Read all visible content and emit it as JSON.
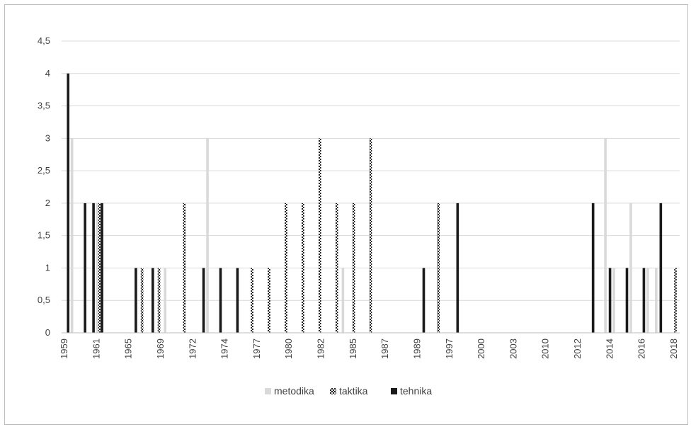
{
  "chart_data": {
    "type": "bar",
    "title": "",
    "xlabel": "",
    "ylabel": "",
    "ylim": [
      0,
      4.5
    ],
    "y_ticks": [
      "0",
      "0,5",
      "1",
      "1,5",
      "2",
      "2,5",
      "3",
      "3,5",
      "4",
      "4,5"
    ],
    "grid": "horizontal",
    "legend_position": "bottom",
    "x_tick_labels": [
      "1959",
      "1961",
      "1965",
      "1969",
      "1972",
      "1974",
      "1977",
      "1980",
      "1982",
      "1985",
      "1987",
      "1989",
      "1997",
      "2000",
      "2003",
      "2010",
      "2012",
      "2014",
      "2016",
      "2018"
    ],
    "series": [
      {
        "name": "metodika",
        "color": "#d9d9d9",
        "pattern": "solid",
        "values": [
          0,
          3,
          0,
          0,
          2,
          0,
          0,
          0,
          0,
          0,
          0,
          0,
          1,
          0,
          0,
          0,
          0,
          3,
          0,
          0,
          0,
          0,
          0,
          0,
          0,
          0,
          0,
          0,
          0,
          0,
          0,
          0,
          0,
          1,
          0,
          0,
          0,
          0,
          0,
          0,
          0,
          0,
          0,
          0,
          0,
          0,
          0,
          0,
          0,
          0,
          0,
          0,
          0,
          0,
          0,
          0,
          0,
          0,
          0,
          0,
          0,
          0,
          0,
          0,
          3,
          1,
          0,
          2,
          0,
          1,
          1,
          0,
          0
        ]
      },
      {
        "name": "taktika",
        "color": "#1f1f1f",
        "pattern": "checker",
        "values": [
          0,
          0,
          0,
          0,
          2,
          0,
          0,
          0,
          0,
          1,
          0,
          1,
          0,
          0,
          2,
          0,
          0,
          0,
          0,
          0,
          0,
          0,
          1,
          0,
          1,
          0,
          2,
          0,
          2,
          0,
          3,
          0,
          2,
          0,
          2,
          0,
          3,
          0,
          0,
          0,
          0,
          0,
          0,
          0,
          2,
          0,
          0,
          0,
          0,
          0,
          0,
          0,
          0,
          0,
          0,
          0,
          0,
          0,
          0,
          0,
          0,
          0,
          0,
          0,
          0,
          0,
          0,
          0,
          0,
          0,
          0,
          0,
          1
        ]
      },
      {
        "name": "tehnika",
        "color": "#1a1a1a",
        "pattern": "solid",
        "values": [
          4,
          0,
          2,
          2,
          2,
          0,
          0,
          0,
          1,
          0,
          1,
          0,
          0,
          0,
          0,
          0,
          1,
          0,
          1,
          0,
          1,
          0,
          0,
          0,
          0,
          0,
          0,
          0,
          0,
          0,
          0,
          0,
          0,
          0,
          0,
          0,
          0,
          0,
          0,
          0,
          0,
          0,
          1,
          0,
          0,
          0,
          2,
          0,
          0,
          0,
          0,
          0,
          0,
          0,
          0,
          0,
          0,
          0,
          0,
          0,
          0,
          0,
          2,
          0,
          1,
          0,
          1,
          0,
          1,
          0,
          2,
          0,
          0
        ]
      }
    ]
  }
}
